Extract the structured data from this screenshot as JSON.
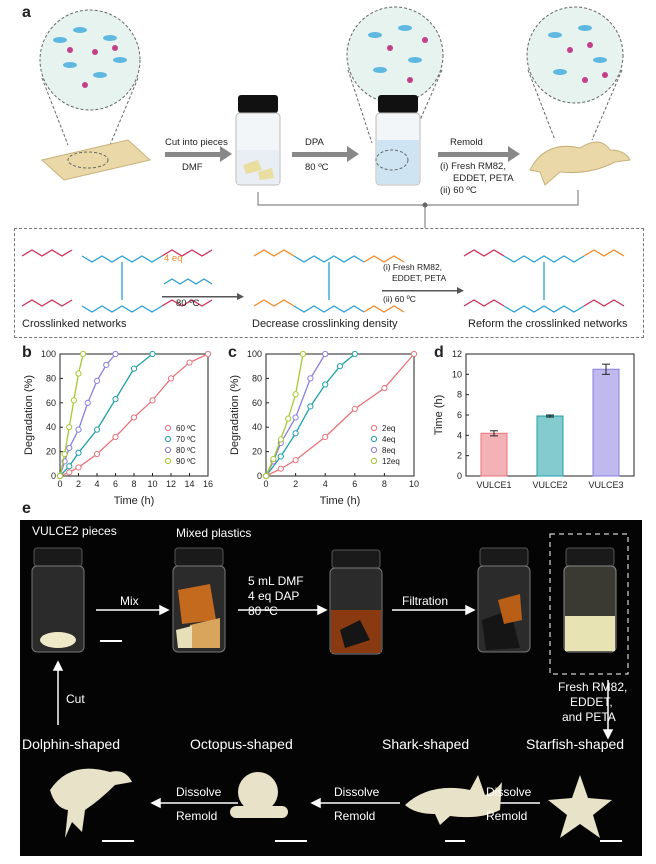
{
  "panel_a": {
    "label": "a",
    "steps": [
      {
        "line1": "Cut into pieces",
        "line2": "DMF"
      },
      {
        "line1": "DPA",
        "line2": "80 ºC"
      },
      {
        "line1": "Remold",
        "line2": "(i) Fresh RM82,",
        "line3": "EDDET,  PETA",
        "line4": "(ii) 60 ºC"
      }
    ],
    "scheme": {
      "reagent": "4 eq",
      "temp": "80 ºC",
      "cond1": "(i) Fresh RM82,",
      "cond2": "EDDET,  PETA",
      "cond3": "(ii) 60 ºC",
      "caption_left": "Crosslinked networks",
      "caption_mid": "Decrease crosslinking density",
      "caption_right": "Reform the crosslinked networks"
    }
  },
  "chart_data": [
    {
      "panel": "b",
      "type": "line",
      "xlabel": "Time (h)",
      "ylabel": "Degradation (%)",
      "xlim": [
        0,
        16
      ],
      "ylim": [
        0,
        100
      ],
      "xticks": [
        "0",
        "2",
        "4",
        "6",
        "8",
        "10",
        "12",
        "14",
        "16"
      ],
      "yticks": [
        "0",
        "20",
        "40",
        "60",
        "80",
        "100"
      ],
      "legend_position": "bottom-right",
      "series": [
        {
          "name": "60 ºC",
          "color": "#e8737a",
          "x": [
            0,
            1,
            2,
            4,
            6,
            8,
            10,
            12,
            14,
            16
          ],
          "y": [
            0,
            3,
            7,
            18,
            32,
            48,
            62,
            80,
            93,
            100
          ]
        },
        {
          "name": "70 ºC",
          "color": "#1ea0a8",
          "x": [
            0,
            1,
            2,
            4,
            6,
            8,
            10
          ],
          "y": [
            0,
            8,
            19,
            38,
            63,
            88,
            100
          ]
        },
        {
          "name": "80 ºC",
          "color": "#8a7fe0",
          "x": [
            0,
            0.5,
            1,
            2,
            3,
            4,
            5,
            6
          ],
          "y": [
            0,
            12,
            23,
            38,
            60,
            78,
            91,
            100
          ]
        },
        {
          "name": "90 ºC",
          "color": "#a7c930",
          "x": [
            0,
            0.5,
            1,
            1.5,
            2,
            2.5
          ],
          "y": [
            0,
            18,
            40,
            62,
            84,
            100
          ]
        }
      ]
    },
    {
      "panel": "c",
      "type": "line",
      "xlabel": "Time (h)",
      "ylabel": "Degradation (%)",
      "xlim": [
        0,
        10
      ],
      "ylim": [
        0,
        100
      ],
      "xticks": [
        "0",
        "2",
        "4",
        "6",
        "8",
        "10"
      ],
      "yticks": [
        "0",
        "20",
        "40",
        "60",
        "80",
        "100"
      ],
      "legend_position": "bottom-right",
      "series": [
        {
          "name": "2eq",
          "color": "#e8737a",
          "x": [
            0,
            1,
            2,
            4,
            6,
            8,
            10
          ],
          "y": [
            0,
            6,
            13,
            32,
            55,
            72,
            100
          ]
        },
        {
          "name": "4eq",
          "color": "#1ea0a8",
          "x": [
            0,
            1,
            2,
            3,
            4,
            5,
            6
          ],
          "y": [
            0,
            16,
            35,
            57,
            75,
            90,
            100
          ]
        },
        {
          "name": "8eq",
          "color": "#8a7fe0",
          "x": [
            0,
            0.5,
            1,
            2,
            3,
            4
          ],
          "y": [
            0,
            12,
            27,
            48,
            80,
            100
          ]
        },
        {
          "name": "12eq",
          "color": "#a7c930",
          "x": [
            0,
            0.5,
            1,
            1.5,
            2,
            2.5
          ],
          "y": [
            0,
            14,
            30,
            47,
            67,
            100
          ]
        }
      ]
    },
    {
      "panel": "d",
      "type": "bar",
      "ylabel": "Time (h)",
      "ylim": [
        0,
        12
      ],
      "yticks": [
        "0",
        "2",
        "4",
        "6",
        "8",
        "10",
        "12"
      ],
      "categories": [
        "VULCE1",
        "VULCE2",
        "VULCE3"
      ],
      "values": [
        4.2,
        5.9,
        10.5
      ],
      "errors": [
        0.25,
        0.1,
        0.5
      ],
      "colors": [
        "#e8737a",
        "#1ea0a8",
        "#8a7fe0"
      ]
    }
  ],
  "panel_labels": {
    "b": "b",
    "c": "c",
    "d": "d",
    "e": "e"
  },
  "panel_e": {
    "pieces": "VULCE2 pieces",
    "mixed": "Mixed plastics",
    "mix": "Mix",
    "cond1": "5 mL DMF",
    "cond2": "4 eq DAP",
    "cond3": "80 ºC",
    "filtration": "Filtration",
    "fresh1": "Fresh RM82,",
    "fresh2": "EDDET,",
    "fresh3": "and PETA",
    "cut": "Cut",
    "shapes": [
      "Dolphin-shaped",
      "Octopus-shaped",
      "Shark-shaped",
      "Starfish-shaped"
    ],
    "dissolve": "Dissolve",
    "remold": "Remold"
  }
}
